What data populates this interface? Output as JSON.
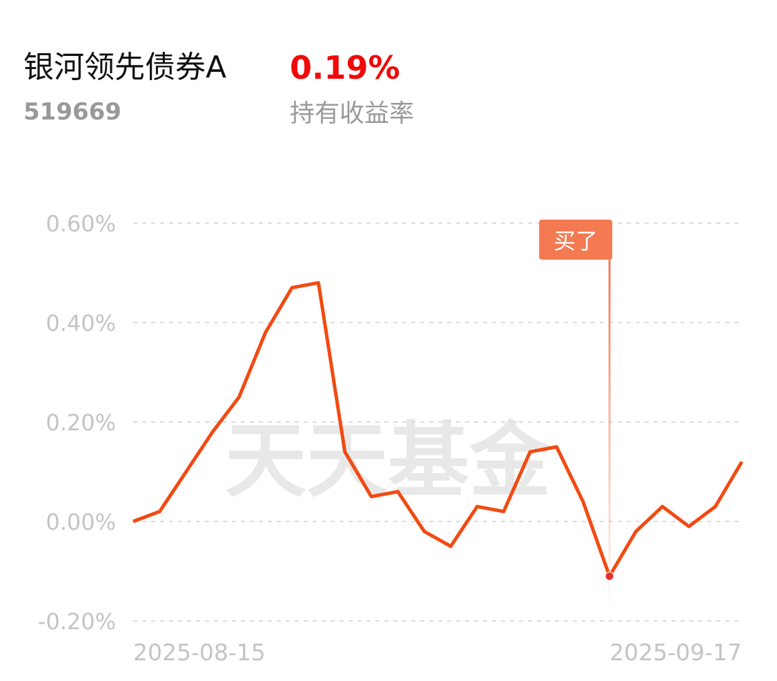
{
  "header": {
    "title": "银河领先债券A",
    "code": "519669",
    "return_value": "0.19%",
    "return_label": "持有收益率"
  },
  "chart_data": {
    "type": "line",
    "watermark": "天天基金",
    "categories": [
      "2025-08-15",
      null,
      null,
      null,
      null,
      null,
      null,
      null,
      null,
      null,
      null,
      null,
      null,
      null,
      null,
      null,
      null,
      null,
      null,
      null,
      null,
      null,
      null,
      "2025-09-17"
    ],
    "series": [
      {
        "color": "#f24a12",
        "values": [
          0.0,
          0.02,
          0.1,
          0.18,
          0.25,
          0.38,
          0.47,
          0.48,
          0.14,
          0.05,
          0.06,
          -0.02,
          -0.05,
          0.03,
          0.02,
          0.14,
          0.15,
          0.04,
          -0.11,
          -0.02,
          0.03,
          -0.01,
          0.03,
          0.12
        ]
      }
    ],
    "ylim": [
      -0.2,
      0.6
    ],
    "yticks": [
      {
        "value": -0.2,
        "label": "-0.20%"
      },
      {
        "value": 0,
        "label": "0.00%"
      },
      {
        "value": 0.2,
        "label": "0.20%"
      },
      {
        "value": 0.4,
        "label": "0.40%"
      },
      {
        "value": 0.6,
        "label": "0.60%"
      }
    ],
    "grid": true,
    "annotations": [
      {
        "text": "买了",
        "category_index": 18
      }
    ]
  }
}
